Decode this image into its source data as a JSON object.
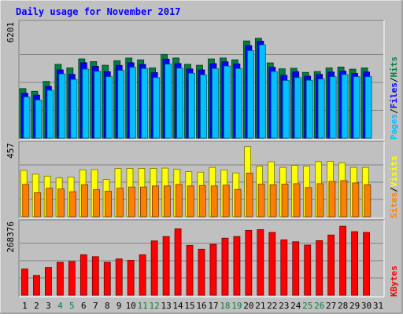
{
  "chart_data": {
    "type": "bar",
    "title": "Daily usage for November 2017",
    "days": [
      "1",
      "2",
      "3",
      "4",
      "5",
      "6",
      "7",
      "8",
      "9",
      "10",
      "11",
      "12",
      "13",
      "14",
      "15",
      "16",
      "17",
      "18",
      "19",
      "20",
      "21",
      "22",
      "23",
      "24",
      "25",
      "26",
      "27",
      "28",
      "29",
      "30",
      "31"
    ],
    "weekend_days": [
      "4",
      "5",
      "11",
      "12",
      "18",
      "19",
      "25",
      "26"
    ],
    "panels": [
      {
        "id": "hits",
        "ylim": [
          0,
          6201
        ],
        "max_label": "6201",
        "legend": [
          {
            "label": "Hits",
            "color": "#008040"
          },
          {
            "label": "Files",
            "color": "#0000ff"
          },
          {
            "label": "Pages",
            "color": "#00c0ff"
          }
        ],
        "series": [
          {
            "name": "Hits",
            "color": "#008040",
            "values": [
              2650,
              2500,
              3050,
              4000,
              3800,
              4300,
              4150,
              3950,
              4200,
              4350,
              4250,
              3800,
              4550,
              4350,
              4000,
              3950,
              4300,
              4350,
              4250,
              5300,
              5450,
              4080,
              3750,
              3780,
              3550,
              3600,
              3800,
              3850,
              3730,
              3800,
              null
            ]
          },
          {
            "name": "Files",
            "color": "#0000ff",
            "values": [
              2500,
              2400,
              2880,
              3800,
              3550,
              4200,
              4000,
              3700,
              4050,
              4200,
              4100,
              3650,
              4400,
              4150,
              3850,
              3800,
              4150,
              4250,
              4130,
              5150,
              5400,
              3950,
              3500,
              3700,
              3450,
              3550,
              3680,
              3730,
              3600,
              3680,
              null
            ]
          },
          {
            "name": "Pages",
            "color": "#00c0ff",
            "values": [
              2400,
              2230,
              2770,
              3680,
              3380,
              3950,
              3830,
              3530,
              3880,
              4050,
              3980,
              3480,
              4230,
              4000,
              3720,
              3630,
              3980,
              4120,
              3980,
              4980,
              5300,
              3820,
              3320,
              3480,
              3330,
              3400,
              3530,
              3650,
              3530,
              3530,
              null
            ]
          }
        ]
      },
      {
        "id": "visits",
        "ylim": [
          0,
          457
        ],
        "max_label": "457",
        "legend": [
          {
            "label": "Visits",
            "color": "#ffff00"
          },
          {
            "label": "Sites",
            "color": "#ff8000"
          }
        ],
        "series": [
          {
            "name": "Visits",
            "color": "#ffff00",
            "values": [
              300,
              275,
              262,
              250,
              256,
              303,
              305,
              240,
              312,
              313,
              313,
              313,
              315,
              307,
              292,
              288,
              320,
              303,
              283,
              457,
              327,
              357,
              320,
              333,
              327,
              358,
              360,
              350,
              320,
              320,
              null
            ]
          },
          {
            "name": "Sites",
            "color": "#ff8000",
            "values": [
              220,
              165,
              195,
              190,
              172,
              218,
              185,
              175,
              195,
              203,
              203,
              210,
              210,
              220,
              210,
              213,
              210,
              215,
              187,
              295,
              222,
              218,
              222,
              225,
              200,
              225,
              240,
              245,
              230,
              218,
              null
            ]
          }
        ]
      },
      {
        "id": "kbytes",
        "ylim": [
          0,
          268376
        ],
        "max_label": "268376",
        "legend": [
          {
            "label": "KBytes",
            "color": "#ff0000"
          }
        ],
        "series": [
          {
            "name": "KBytes",
            "color": "#ff0000",
            "values": [
              102000,
              77000,
              108000,
              128000,
              131000,
              157000,
              150000,
              128000,
              141000,
              136000,
              157000,
              211000,
              228000,
              258000,
              194000,
              179000,
              198000,
              222000,
              228000,
              252000,
              255000,
              244000,
              215000,
              208000,
              195000,
              212000,
              234000,
              268000,
              247000,
              244000,
              null
            ]
          }
        ]
      }
    ]
  }
}
